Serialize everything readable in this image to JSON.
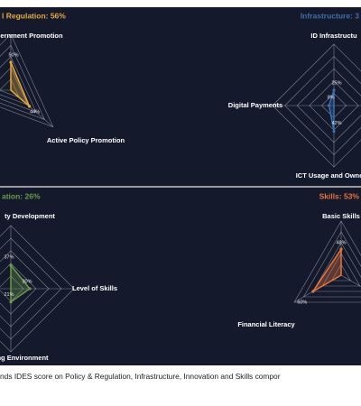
{
  "chart_data": [
    {
      "type": "radar",
      "title": "l Regulation: 56%",
      "color": "#e8a838",
      "categories": [
        "ernment Promotion",
        "Active Policy Promotion"
      ],
      "values": [
        50,
        44
      ],
      "value_labels": [
        "50%",
        "44%"
      ]
    },
    {
      "type": "radar",
      "title": "Infrastructure: 3",
      "color": "#3d6fb0",
      "categories": [
        "ID Infrastructu",
        "Digital Payments",
        "ICT Usage and Owne"
      ],
      "values": [
        25,
        8,
        42
      ],
      "value_labels": [
        "25%",
        "8%",
        "42%"
      ]
    },
    {
      "type": "radar",
      "title": "ation: 26%",
      "color": "#6b9a4a",
      "categories": [
        "ty Development",
        "Level of Skills",
        "ng Environment"
      ],
      "values": [
        37,
        30,
        21
      ],
      "value_labels": [
        "37%",
        "30%",
        "21%"
      ]
    },
    {
      "type": "radar",
      "title": "Skills: 53%",
      "color": "#e8743b",
      "categories": [
        "Basic Skills",
        "Financial Literacy"
      ],
      "values": [
        48,
        60
      ],
      "value_labels": [
        "48%",
        "60%"
      ]
    }
  ],
  "caption": "nds IDES score on Policy & Regulation, Infrastructure, Innovation and Skills compor"
}
